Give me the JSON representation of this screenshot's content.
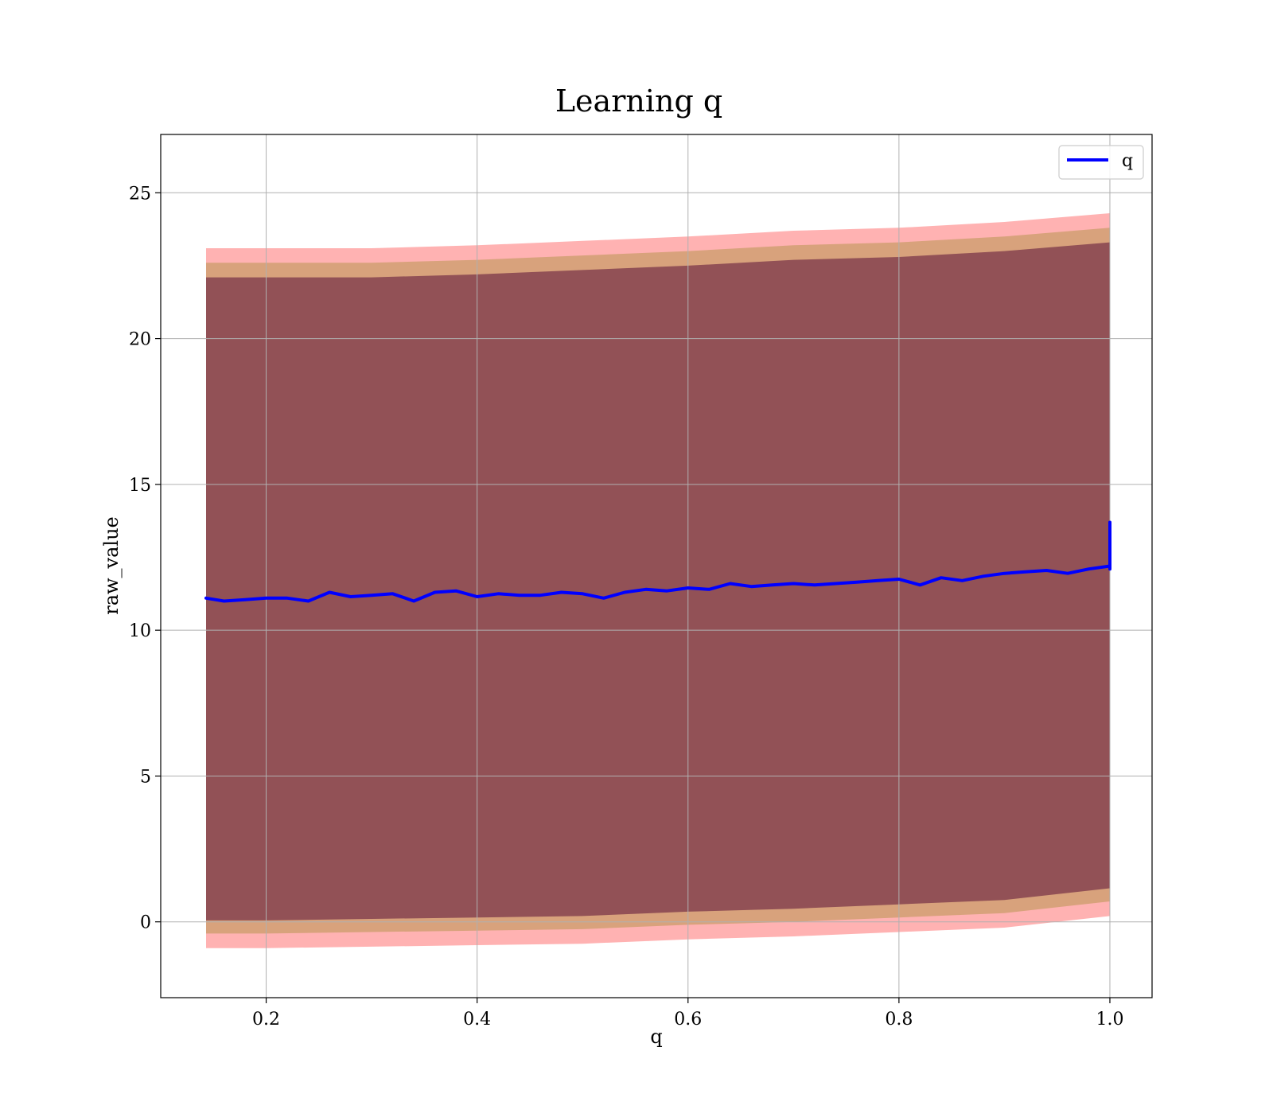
{
  "chart_data": {
    "type": "line",
    "title": "Learning q",
    "xlabel": "q",
    "ylabel": "raw_value",
    "xlim": [
      0.1,
      1.04
    ],
    "ylim": [
      -2.6,
      27
    ],
    "xticks": [
      0.2,
      0.4,
      0.6,
      0.8,
      1.0
    ],
    "xtick_labels": [
      "0.2",
      "0.4",
      "0.6",
      "0.8",
      "1.0"
    ],
    "yticks": [
      0,
      5,
      10,
      15,
      20,
      25
    ],
    "ytick_labels": [
      "0",
      "5",
      "10",
      "15",
      "20",
      "25"
    ],
    "grid": true,
    "legend": {
      "placement": "top-right",
      "entries": [
        {
          "name": "q",
          "color": "#0000ff"
        }
      ]
    },
    "series": [
      {
        "name": "q",
        "color": "#0000ff",
        "x": [
          0.143,
          0.16,
          0.18,
          0.2,
          0.22,
          0.24,
          0.26,
          0.28,
          0.3,
          0.32,
          0.34,
          0.36,
          0.38,
          0.4,
          0.42,
          0.44,
          0.46,
          0.48,
          0.5,
          0.52,
          0.54,
          0.56,
          0.58,
          0.6,
          0.62,
          0.64,
          0.66,
          0.68,
          0.7,
          0.72,
          0.74,
          0.76,
          0.78,
          0.8,
          0.82,
          0.84,
          0.86,
          0.88,
          0.9,
          0.92,
          0.94,
          0.96,
          0.98,
          1.0,
          1.0,
          1.0
        ],
        "values": [
          11.1,
          11.0,
          11.05,
          11.1,
          11.1,
          11.0,
          11.3,
          11.15,
          11.2,
          11.25,
          11.0,
          11.3,
          11.35,
          11.15,
          11.25,
          11.2,
          11.2,
          11.3,
          11.25,
          11.1,
          11.3,
          11.4,
          11.35,
          11.45,
          11.4,
          11.6,
          11.5,
          11.55,
          11.6,
          11.55,
          11.6,
          11.65,
          11.7,
          11.75,
          11.55,
          11.8,
          11.7,
          11.85,
          11.95,
          12.0,
          12.05,
          11.95,
          12.1,
          12.2,
          13.7,
          12.1
        ]
      }
    ],
    "bands": [
      {
        "color": "#ff0000",
        "opacity": 0.3,
        "x": [
          0.143,
          0.2,
          0.3,
          0.4,
          0.5,
          0.6,
          0.7,
          0.8,
          0.9,
          1.0
        ],
        "upper": [
          23.1,
          23.1,
          23.1,
          23.2,
          23.35,
          23.5,
          23.7,
          23.8,
          24.0,
          24.3
        ],
        "lower": [
          -0.9,
          -0.9,
          -0.85,
          -0.8,
          -0.75,
          -0.6,
          -0.5,
          -0.35,
          -0.2,
          0.2
        ]
      },
      {
        "color": "#7f7f00",
        "opacity": 0.3,
        "x": [
          0.143,
          0.2,
          0.3,
          0.4,
          0.5,
          0.6,
          0.7,
          0.8,
          0.9,
          1.0
        ],
        "upper": [
          22.6,
          22.6,
          22.6,
          22.7,
          22.85,
          23.0,
          23.2,
          23.3,
          23.5,
          23.8
        ],
        "lower": [
          -0.4,
          -0.4,
          -0.35,
          -0.3,
          -0.25,
          -0.1,
          0.0,
          0.15,
          0.3,
          0.7
        ]
      },
      {
        "color": "#4b0030",
        "opacity": 0.5,
        "x": [
          0.143,
          0.2,
          0.3,
          0.4,
          0.5,
          0.6,
          0.7,
          0.8,
          0.9,
          1.0
        ],
        "upper": [
          22.1,
          22.1,
          22.1,
          22.2,
          22.35,
          22.5,
          22.7,
          22.8,
          23.0,
          23.3
        ],
        "lower": [
          0.05,
          0.05,
          0.1,
          0.15,
          0.2,
          0.35,
          0.45,
          0.6,
          0.75,
          1.15
        ]
      }
    ]
  }
}
